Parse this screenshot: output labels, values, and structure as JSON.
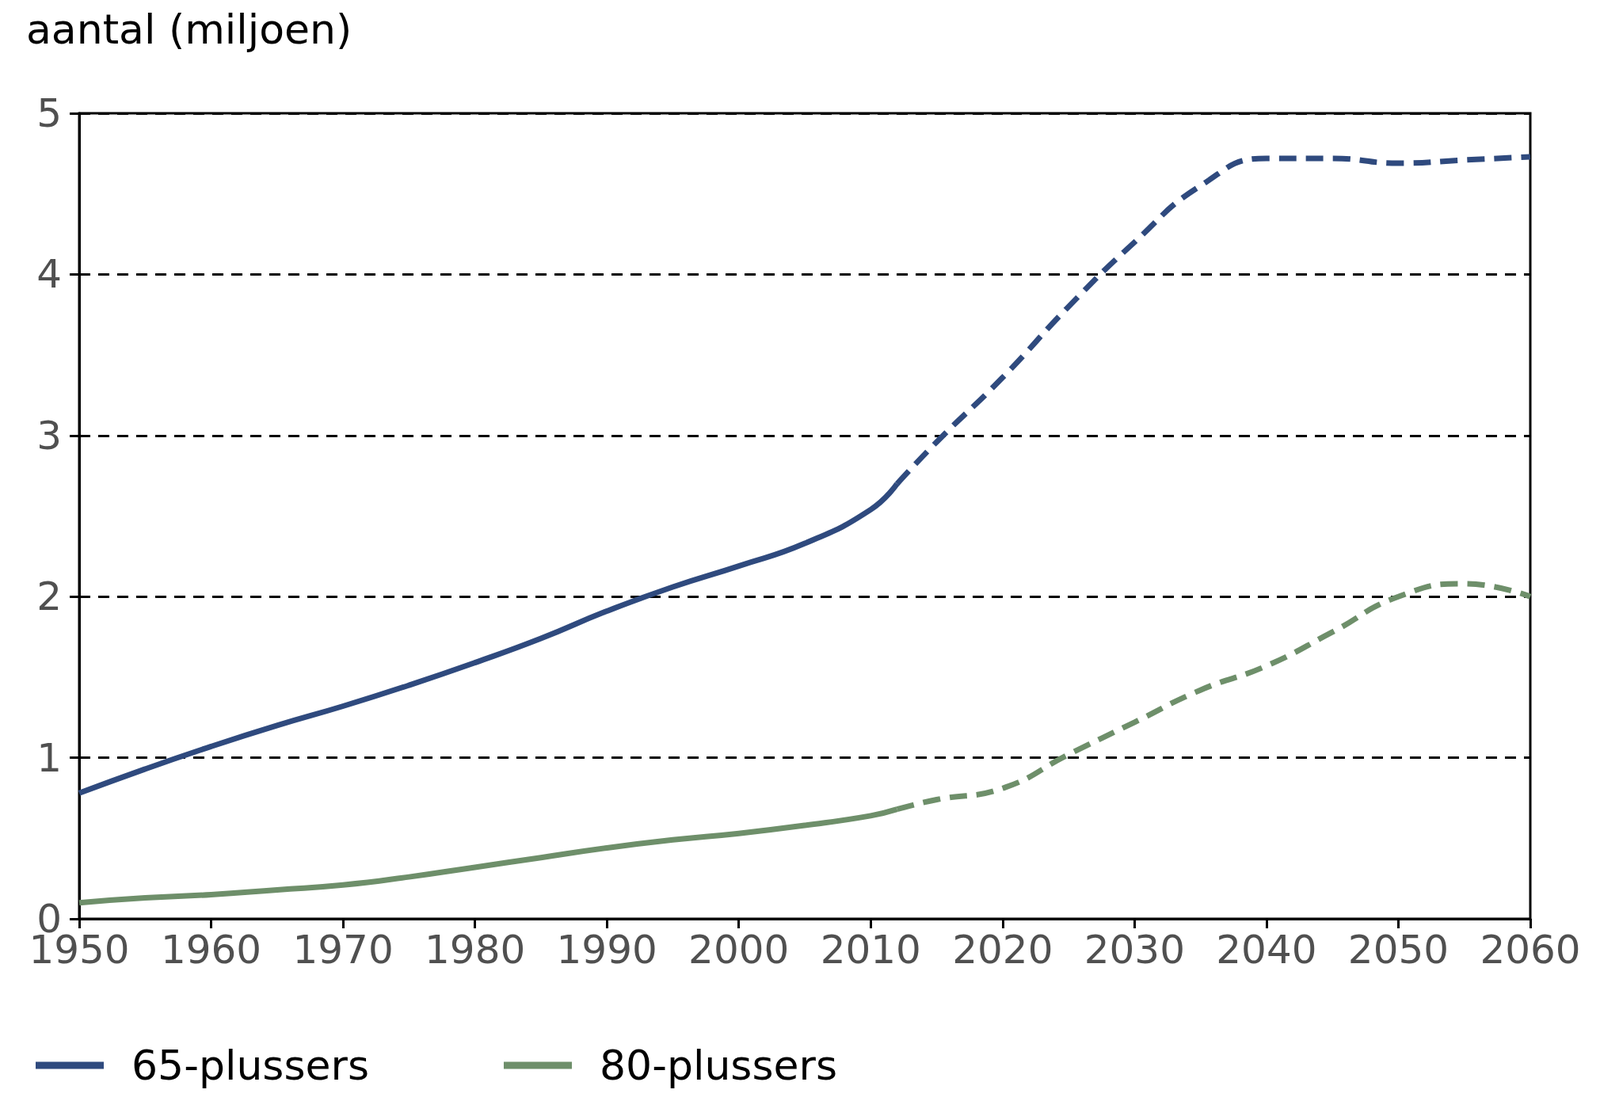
{
  "chart_data": {
    "type": "line",
    "y_label": "aantal (miljoen)",
    "x": [
      1950,
      1955,
      1960,
      1965,
      1970,
      1975,
      1980,
      1985,
      1990,
      1995,
      2000,
      2005,
      2010,
      2012,
      2015,
      2020,
      2025,
      2030,
      2035,
      2040,
      2045,
      2050,
      2055,
      2060
    ],
    "series": [
      {
        "name": "65-plussers",
        "color": "#2f4a7e",
        "line_style": "solid",
        "values": [
          0.78,
          0.93,
          1.07,
          1.2,
          1.32,
          1.45,
          1.59,
          1.74,
          1.91,
          2.06,
          2.19,
          2.33,
          2.54,
          2.7,
          null,
          null,
          null,
          null,
          null,
          null,
          null,
          null,
          null,
          null
        ]
      },
      {
        "name": "65-plussers",
        "color": "#2f4a7e",
        "line_style": "dashed",
        "values": [
          null,
          null,
          null,
          null,
          null,
          null,
          null,
          null,
          null,
          null,
          null,
          null,
          null,
          2.7,
          2.96,
          3.36,
          3.8,
          4.2,
          4.55,
          4.72,
          4.72,
          4.69,
          4.71,
          4.73
        ]
      },
      {
        "name": "80-plussers",
        "color": "#6e8f6a",
        "line_style": "solid",
        "values": [
          0.1,
          0.13,
          0.15,
          0.18,
          0.21,
          0.26,
          0.32,
          0.38,
          0.44,
          0.49,
          0.53,
          0.58,
          0.64,
          0.68,
          null,
          null,
          null,
          null,
          null,
          null,
          null,
          null,
          null,
          null
        ]
      },
      {
        "name": "80-plussers",
        "color": "#6e8f6a",
        "line_style": "dashed",
        "values": [
          null,
          null,
          null,
          null,
          null,
          null,
          null,
          null,
          null,
          null,
          null,
          null,
          null,
          0.68,
          0.74,
          0.81,
          1.02,
          1.22,
          1.42,
          1.57,
          1.78,
          2.0,
          2.08,
          2.0
        ]
      }
    ],
    "xlim": [
      1950,
      2060
    ],
    "xticks": [
      1950,
      1960,
      1970,
      1980,
      1990,
      2000,
      2010,
      2020,
      2030,
      2040,
      2050,
      2060
    ],
    "ylim": [
      0,
      5
    ],
    "yticks": [
      0,
      1,
      2,
      3,
      4,
      5
    ],
    "grid": true,
    "legend": "bottom-left"
  }
}
